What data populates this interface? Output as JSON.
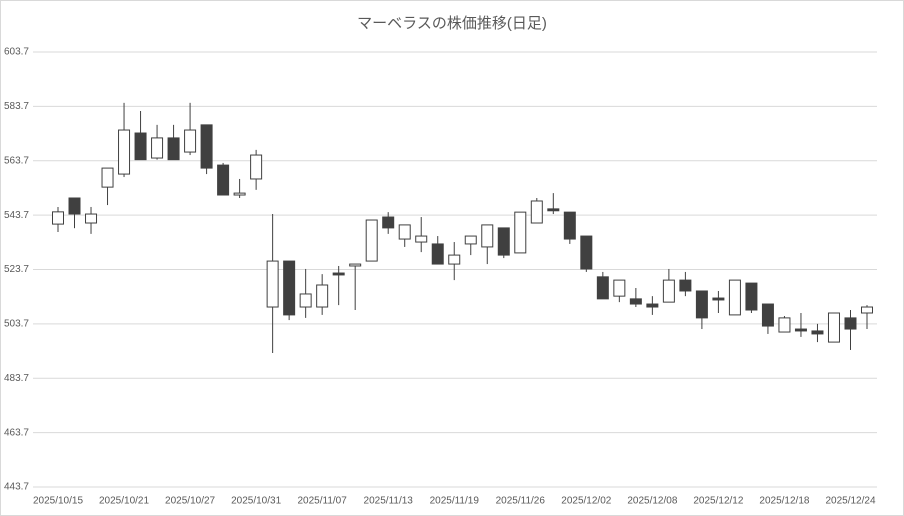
{
  "chart_data": {
    "type": "candlestick",
    "title": "マーベラスの株価推移(日足)",
    "categories": [
      "2025/10/15",
      null,
      null,
      null,
      "2025/10/21",
      null,
      null,
      null,
      "2025/10/27",
      null,
      null,
      null,
      "2025/10/31",
      null,
      null,
      null,
      "2025/11/07",
      null,
      null,
      null,
      "2025/11/13",
      null,
      null,
      null,
      "2025/11/19",
      null,
      null,
      null,
      "2025/11/26",
      null,
      null,
      null,
      "2025/12/02",
      null,
      null,
      null,
      "2025/12/08",
      null,
      null,
      null,
      "2025/12/12",
      null,
      null,
      null,
      "2025/12/18",
      null,
      null,
      null,
      "2025/12/24",
      null
    ],
    "open": [
      540.4,
      550.0,
      540.8,
      554.0,
      558.8,
      573.9,
      564.7,
      572.1,
      566.9,
      576.9,
      562.1,
      551.1,
      557.0,
      509.9,
      526.8,
      509.9,
      509.9,
      522.4,
      525.0,
      526.8,
      543.0,
      534.9,
      533.8,
      533.1,
      525.7,
      533.1,
      532.0,
      539.0,
      529.8,
      540.8,
      546.0,
      544.8,
      536.0,
      521.0,
      513.9,
      512.9,
      511.0,
      511.7,
      519.8,
      515.8,
      513.2,
      507.0,
      518.7,
      511.0,
      500.7,
      501.8,
      501.1,
      497.0,
      505.9,
      507.7
    ],
    "high": [
      546.7,
      550.0,
      546.7,
      561.0,
      585.0,
      582.0,
      576.9,
      576.9,
      585.0,
      576.9,
      562.9,
      557.0,
      567.7,
      544.1,
      526.8,
      523.9,
      522.0,
      525.0,
      525.7,
      541.9,
      544.8,
      540.1,
      543.0,
      536.0,
      533.8,
      536.0,
      540.1,
      539.0,
      544.8,
      550.0,
      551.8,
      544.8,
      536.0,
      522.8,
      519.8,
      516.9,
      513.9,
      523.9,
      522.8,
      515.8,
      515.8,
      519.8,
      518.7,
      511.0,
      506.6,
      507.7,
      503.7,
      507.7,
      508.8,
      510.6
    ],
    "low": [
      537.5,
      538.9,
      536.8,
      547.4,
      557.7,
      564.1,
      564.1,
      564.1,
      565.8,
      558.8,
      551.1,
      550.0,
      553.0,
      493.0,
      505.1,
      505.9,
      507.0,
      510.6,
      508.8,
      526.8,
      536.8,
      532.0,
      530.1,
      525.7,
      519.8,
      529.0,
      525.7,
      527.9,
      529.8,
      540.8,
      544.1,
      533.1,
      522.8,
      512.9,
      511.7,
      509.9,
      507.0,
      511.7,
      513.9,
      501.8,
      507.7,
      507.0,
      507.7,
      500.0,
      500.7,
      498.9,
      497.0,
      497.0,
      494.1,
      501.8
    ],
    "close": [
      544.9,
      544.1,
      544.1,
      561.0,
      575.0,
      564.1,
      572.1,
      564.1,
      575.0,
      561.0,
      551.1,
      551.8,
      565.8,
      526.8,
      507.0,
      514.7,
      518.0,
      521.7,
      525.7,
      541.9,
      539.0,
      540.1,
      536.0,
      525.7,
      529.0,
      536.0,
      540.1,
      529.0,
      544.8,
      548.9,
      545.3,
      534.9,
      523.9,
      512.9,
      519.8,
      511.0,
      509.9,
      519.8,
      515.8,
      505.9,
      512.5,
      519.8,
      508.8,
      502.9,
      505.9,
      501.1,
      500.0,
      507.7,
      501.8,
      509.9
    ],
    "up_color": "#ffffff",
    "down_color": "#404040",
    "edge_color": "#404040",
    "ylim": [
      443.7,
      603.7
    ],
    "yticks": [
      443.7,
      463.7,
      483.7,
      503.7,
      523.7,
      543.7,
      563.7,
      583.7,
      603.7
    ],
    "grid": true
  }
}
